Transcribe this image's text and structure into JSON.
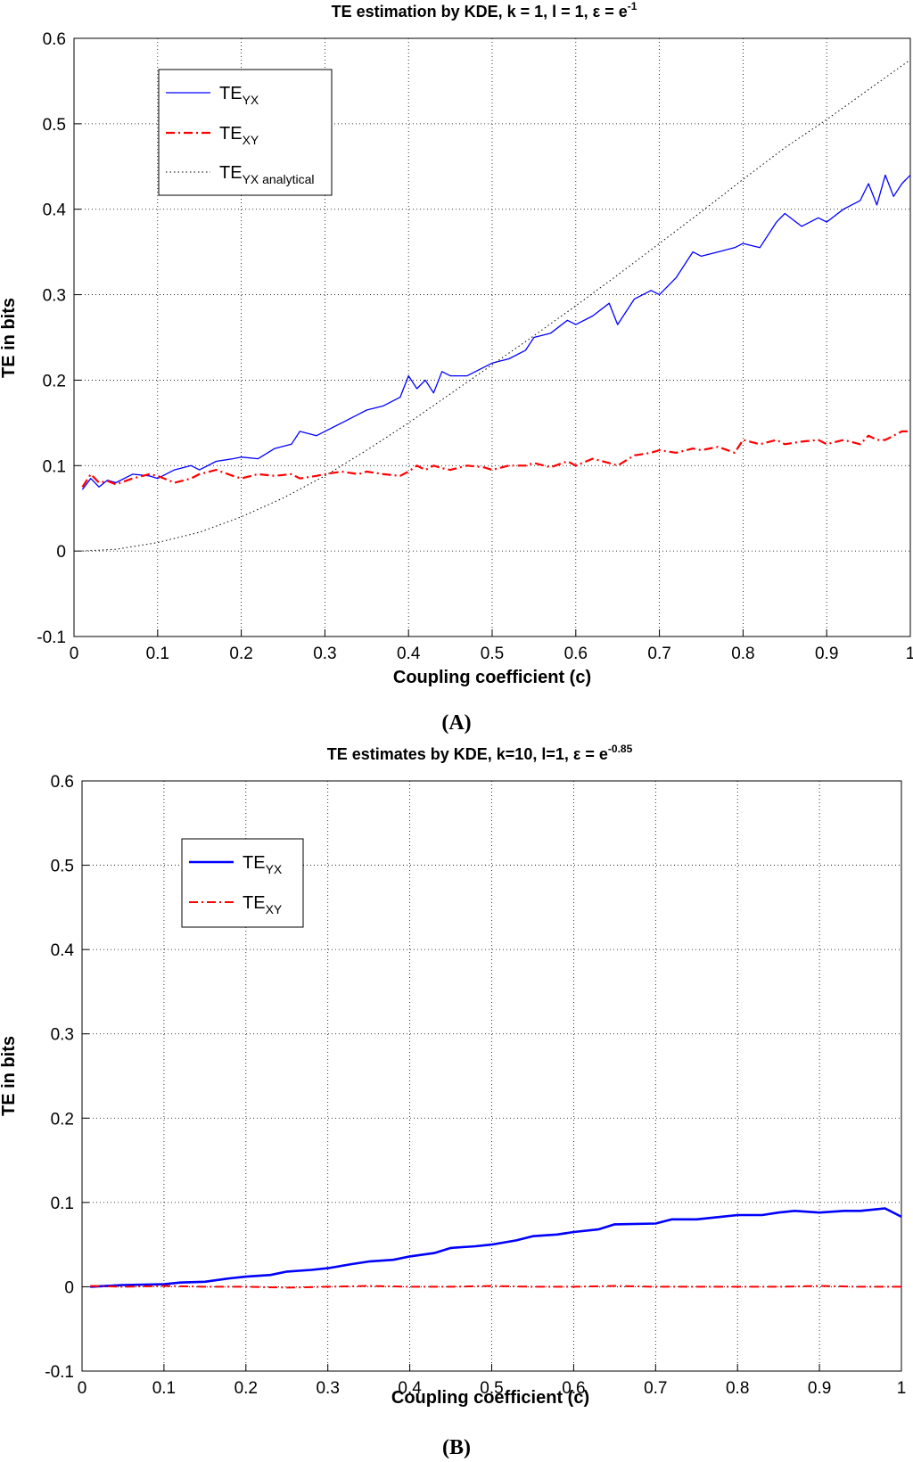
{
  "panels": [
    {
      "label": "(A)",
      "chart_data": {
        "type": "line",
        "title": {
          "main": "TE estimation by KDE, k = 1, l = 1, ε = e",
          "sup": "-1"
        },
        "xlabel": "Coupling coefficient (c)",
        "ylabel": "TE in bits",
        "xlim": [
          0,
          1
        ],
        "ylim": [
          -0.1,
          0.6
        ],
        "xticks": [
          "0",
          "0.1",
          "0.2",
          "0.3",
          "0.4",
          "0.5",
          "0.6",
          "0.7",
          "0.8",
          "0.9",
          "1"
        ],
        "yticks": [
          "-0.1",
          "0",
          "0.1",
          "0.2",
          "0.3",
          "0.4",
          "0.5",
          "0.6"
        ],
        "grid": true,
        "legend_position": "top-left",
        "series": [
          {
            "name": "TE",
            "name_sub": "YX",
            "color": "#0000ff",
            "style": "solid",
            "x": [
              0.01,
              0.02,
              0.03,
              0.04,
              0.05,
              0.07,
              0.09,
              0.1,
              0.12,
              0.14,
              0.15,
              0.17,
              0.19,
              0.2,
              0.22,
              0.24,
              0.26,
              0.27,
              0.29,
              0.3,
              0.32,
              0.34,
              0.35,
              0.37,
              0.39,
              0.4,
              0.41,
              0.42,
              0.43,
              0.44,
              0.45,
              0.47,
              0.49,
              0.5,
              0.52,
              0.54,
              0.55,
              0.57,
              0.59,
              0.6,
              0.62,
              0.64,
              0.65,
              0.67,
              0.69,
              0.7,
              0.72,
              0.74,
              0.75,
              0.77,
              0.79,
              0.8,
              0.82,
              0.84,
              0.85,
              0.87,
              0.89,
              0.9,
              0.92,
              0.94,
              0.95,
              0.96,
              0.97,
              0.98,
              0.99,
              1.0
            ],
            "y": [
              0.072,
              0.085,
              0.075,
              0.083,
              0.08,
              0.09,
              0.088,
              0.085,
              0.095,
              0.1,
              0.095,
              0.105,
              0.108,
              0.11,
              0.108,
              0.12,
              0.125,
              0.14,
              0.135,
              0.14,
              0.15,
              0.16,
              0.165,
              0.17,
              0.18,
              0.205,
              0.19,
              0.2,
              0.185,
              0.21,
              0.205,
              0.205,
              0.215,
              0.22,
              0.225,
              0.235,
              0.25,
              0.255,
              0.27,
              0.265,
              0.275,
              0.29,
              0.265,
              0.295,
              0.305,
              0.3,
              0.32,
              0.35,
              0.345,
              0.35,
              0.355,
              0.36,
              0.355,
              0.385,
              0.395,
              0.38,
              0.39,
              0.385,
              0.4,
              0.41,
              0.43,
              0.405,
              0.44,
              0.415,
              0.43,
              0.44
            ]
          },
          {
            "name": "TE",
            "name_sub": "XY",
            "color": "#ff0000",
            "style": "dashdot",
            "x": [
              0.01,
              0.02,
              0.03,
              0.04,
              0.05,
              0.07,
              0.09,
              0.1,
              0.12,
              0.14,
              0.15,
              0.17,
              0.19,
              0.2,
              0.22,
              0.24,
              0.26,
              0.27,
              0.29,
              0.3,
              0.32,
              0.34,
              0.35,
              0.37,
              0.39,
              0.4,
              0.41,
              0.42,
              0.43,
              0.44,
              0.45,
              0.47,
              0.49,
              0.5,
              0.52,
              0.54,
              0.55,
              0.57,
              0.59,
              0.6,
              0.62,
              0.64,
              0.65,
              0.67,
              0.69,
              0.7,
              0.72,
              0.74,
              0.75,
              0.77,
              0.79,
              0.8,
              0.82,
              0.84,
              0.85,
              0.87,
              0.89,
              0.9,
              0.92,
              0.94,
              0.95,
              0.96,
              0.97,
              0.98,
              0.99,
              1.0
            ],
            "y": [
              0.075,
              0.09,
              0.08,
              0.082,
              0.078,
              0.085,
              0.09,
              0.088,
              0.08,
              0.085,
              0.09,
              0.095,
              0.088,
              0.085,
              0.09,
              0.088,
              0.09,
              0.085,
              0.088,
              0.09,
              0.093,
              0.09,
              0.093,
              0.09,
              0.088,
              0.093,
              0.1,
              0.095,
              0.1,
              0.097,
              0.095,
              0.1,
              0.098,
              0.095,
              0.1,
              0.1,
              0.103,
              0.098,
              0.105,
              0.1,
              0.108,
              0.103,
              0.1,
              0.112,
              0.115,
              0.118,
              0.115,
              0.12,
              0.118,
              0.122,
              0.115,
              0.13,
              0.125,
              0.13,
              0.125,
              0.128,
              0.13,
              0.125,
              0.13,
              0.125,
              0.135,
              0.13,
              0.13,
              0.135,
              0.14,
              0.14
            ]
          },
          {
            "name": "TE",
            "name_sub": "YX analytical",
            "color": "#000000",
            "style": "dotted",
            "x": [
              0.01,
              0.05,
              0.1,
              0.15,
              0.2,
              0.25,
              0.3,
              0.35,
              0.4,
              0.45,
              0.5,
              0.55,
              0.6,
              0.65,
              0.7,
              0.75,
              0.8,
              0.85,
              0.9,
              0.95,
              1.0
            ],
            "y": [
              0.0,
              0.002,
              0.01,
              0.022,
              0.04,
              0.062,
              0.088,
              0.118,
              0.15,
              0.184,
              0.218,
              0.252,
              0.287,
              0.323,
              0.36,
              0.397,
              0.435,
              0.472,
              0.505,
              0.54,
              0.575
            ]
          }
        ]
      }
    },
    {
      "label": "(B)",
      "chart_data": {
        "type": "line",
        "title": {
          "main": "TE estimates by KDE, k=10, l=1, ε = e",
          "sup": "-0.85"
        },
        "xlabel": "Coupling coefficient (c)",
        "ylabel": "TE in bits",
        "xlim": [
          0,
          1
        ],
        "ylim": [
          -0.1,
          0.6
        ],
        "xticks": [
          "0",
          "0.1",
          "0.2",
          "0.3",
          "0.4",
          "0.5",
          "0.6",
          "0.7",
          "0.8",
          "0.9",
          "1"
        ],
        "yticks": [
          "-0.1",
          "0",
          "0.1",
          "0.2",
          "0.3",
          "0.4",
          "0.5",
          "0.6"
        ],
        "grid": true,
        "legend_position": "top-left",
        "series": [
          {
            "name": "TE",
            "name_sub": "YX",
            "color": "#0000ff",
            "style": "solid",
            "x": [
              0.01,
              0.05,
              0.1,
              0.12,
              0.15,
              0.18,
              0.2,
              0.23,
              0.25,
              0.28,
              0.3,
              0.33,
              0.35,
              0.38,
              0.4,
              0.43,
              0.45,
              0.48,
              0.5,
              0.53,
              0.55,
              0.58,
              0.6,
              0.63,
              0.65,
              0.7,
              0.72,
              0.75,
              0.78,
              0.8,
              0.83,
              0.85,
              0.87,
              0.9,
              0.93,
              0.95,
              0.97,
              0.98,
              1.0
            ],
            "y": [
              0.0,
              0.002,
              0.003,
              0.005,
              0.006,
              0.01,
              0.012,
              0.014,
              0.018,
              0.02,
              0.022,
              0.027,
              0.03,
              0.032,
              0.036,
              0.04,
              0.046,
              0.048,
              0.05,
              0.055,
              0.06,
              0.062,
              0.065,
              0.068,
              0.074,
              0.075,
              0.08,
              0.08,
              0.083,
              0.085,
              0.085,
              0.088,
              0.09,
              0.088,
              0.09,
              0.09,
              0.092,
              0.093,
              0.083
            ]
          },
          {
            "name": "TE",
            "name_sub": "XY",
            "color": "#ff0000",
            "style": "dashdot",
            "x": [
              0.01,
              0.05,
              0.1,
              0.15,
              0.2,
              0.25,
              0.3,
              0.35,
              0.4,
              0.45,
              0.5,
              0.55,
              0.6,
              0.65,
              0.7,
              0.75,
              0.8,
              0.85,
              0.9,
              0.95,
              1.0
            ],
            "y": [
              0.001,
              0.0,
              0.001,
              0.0,
              0.0,
              -0.001,
              0.0,
              0.001,
              0.0,
              0.0,
              0.001,
              0.0,
              0.0,
              0.001,
              0.0,
              0.0,
              0.0,
              0.0,
              0.001,
              0.0,
              0.0
            ]
          }
        ]
      }
    }
  ]
}
